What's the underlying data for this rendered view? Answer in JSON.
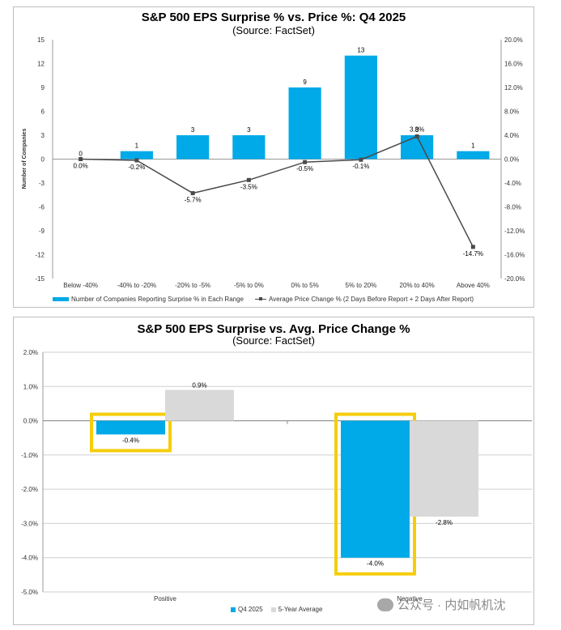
{
  "chart_data": [
    {
      "type": "bar",
      "title": "S&P 500 EPS Surprise % vs. Price %: Q4 2025",
      "subtitle": "(Source: FactSet)",
      "ylabel": "Number of Companies",
      "categories": [
        "Below -40%",
        "-40% to -20%",
        "-20% to -5%",
        "-5% to 0%",
        "0% to 5%",
        "5% to 20%",
        "20% to 40%",
        "Above 40%"
      ],
      "ylim": [
        -15,
        15
      ],
      "y_ticks": [
        "15",
        "12",
        "9",
        "6",
        "3",
        "0",
        "-3",
        "-6",
        "-9",
        "-12",
        "-15"
      ],
      "y2lim": [
        -20,
        20
      ],
      "y2_ticks": [
        "20.0%",
        "16.0%",
        "12.0%",
        "8.0%",
        "4.0%",
        "0.0%",
        "-4.0%",
        "-8.0%",
        "-12.0%",
        "-16.0%",
        "-20.0%"
      ],
      "series": [
        {
          "name": "Number of Companies Reporting Surprise % in Each Range",
          "type": "bar",
          "axis": "left",
          "values": [
            0,
            1,
            3,
            3,
            9,
            13,
            3,
            1
          ],
          "labels": [
            "0",
            "1",
            "3",
            "3",
            "9",
            "13",
            "3",
            "1"
          ],
          "color": "#00a9e8"
        },
        {
          "name": "Average Price Change % (2 Days Before Report + 2 Days After Report)",
          "type": "line",
          "axis": "right",
          "values": [
            0.0,
            -0.2,
            -5.7,
            -3.5,
            -0.5,
            -0.1,
            3.8,
            -14.7
          ],
          "labels": [
            "0.0%",
            "-0.2%",
            "-5.7%",
            "-3.5%",
            "-0.5%",
            "-0.1%",
            "3.8%",
            "-14.7%"
          ],
          "color": "#4a4a4a"
        }
      ],
      "legend": "bottom"
    },
    {
      "type": "bar",
      "title": "S&P 500 EPS Surprise vs. Avg. Price Change %",
      "subtitle": "(Source: FactSet)",
      "categories": [
        "Positive",
        "Negative"
      ],
      "ylim": [
        -5,
        2
      ],
      "y_ticks": [
        "2.0%",
        "1.0%",
        "0.0%",
        "-1.0%",
        "-2.0%",
        "-3.0%",
        "-4.0%",
        "-5.0%"
      ],
      "grid": true,
      "series": [
        {
          "name": "Q4 2025",
          "values": [
            -0.4,
            -4.0
          ],
          "labels": [
            "-0.4%",
            "-4.0%"
          ],
          "color": "#00a9e8"
        },
        {
          "name": "5-Year Average",
          "values": [
            0.9,
            -2.8
          ],
          "labels": [
            "0.9%",
            "-2.8%"
          ],
          "color": "#d9d9d9"
        }
      ],
      "highlight_color": "#f5cd0c",
      "legend": "bottom"
    }
  ],
  "watermark": {
    "text": "公众号 · 内如帆机沈"
  }
}
